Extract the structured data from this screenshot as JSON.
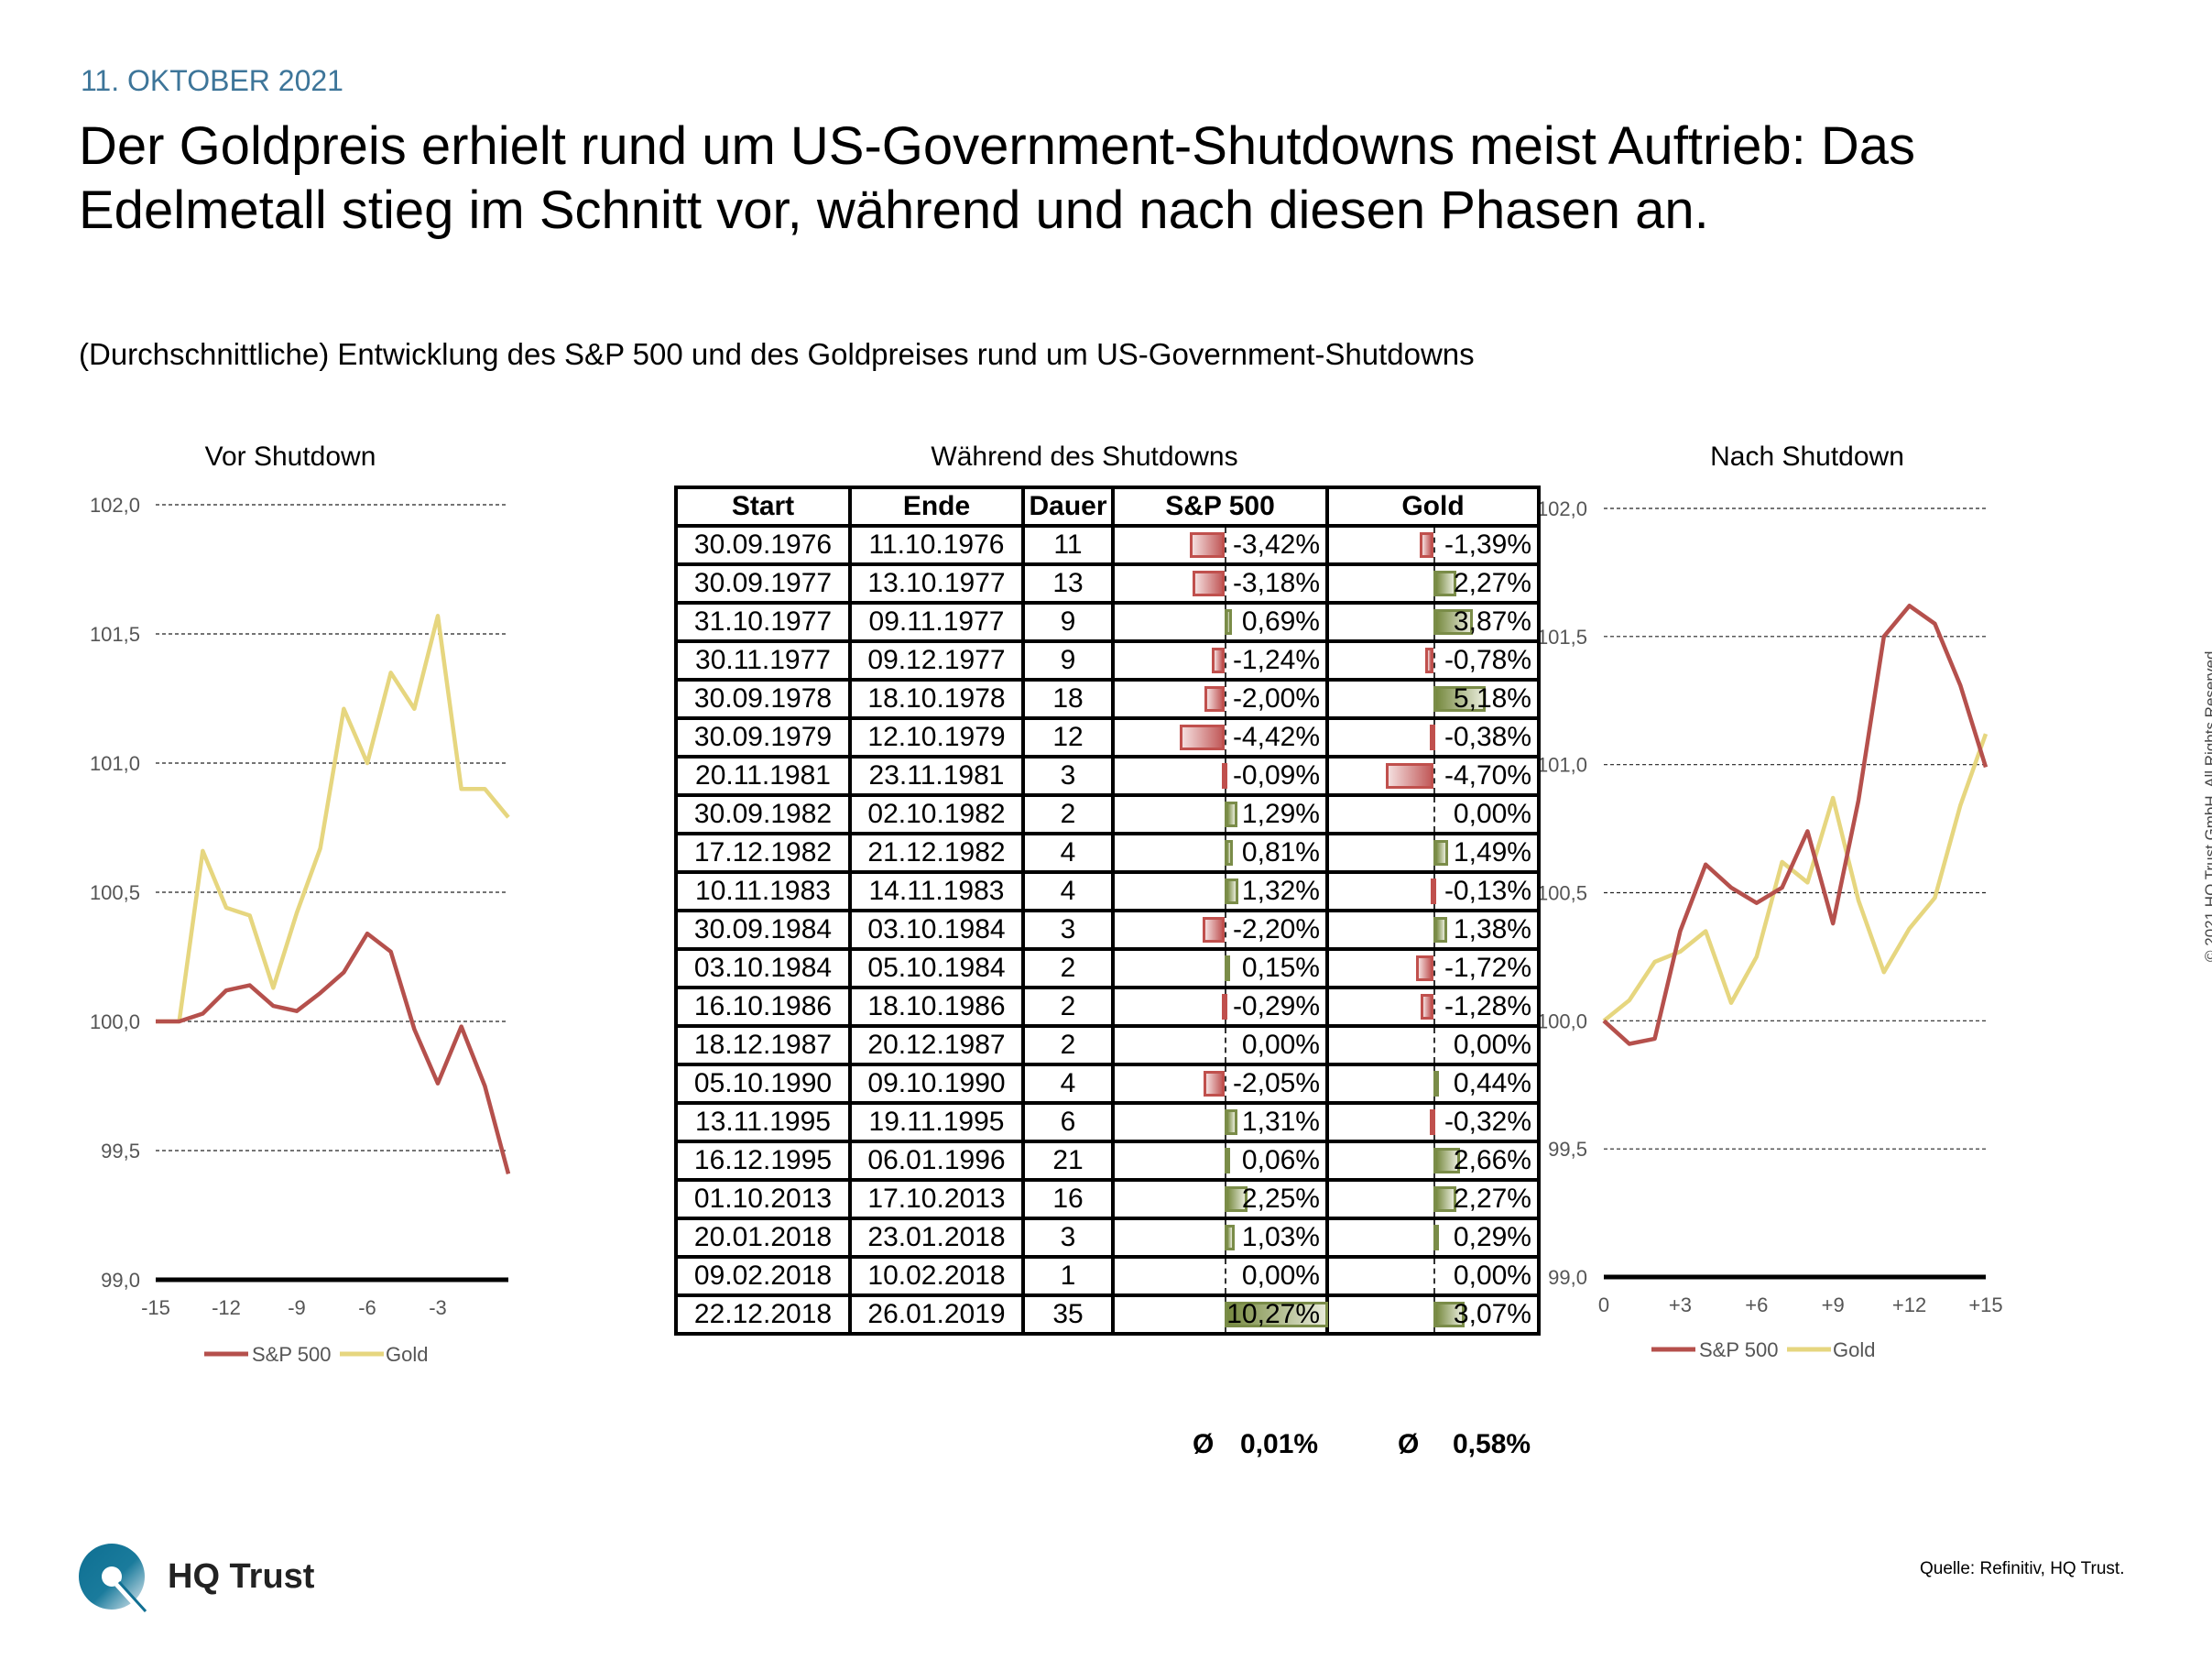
{
  "header": {
    "date": "11. OKTOBER 2021",
    "title_line1": "Der Goldpreis erhielt rund um US-Government-Shutdowns meist Auftrieb: Das",
    "title_line2": "Edelmetall stieg im Schnitt vor, während und nach diesen Phasen an.",
    "subtitle": "(Durchschnittliche) Entwicklung des S&P 500 und des Goldpreises rund um US-Government-Shutdowns"
  },
  "colors": {
    "date": "#3d7599",
    "sp500": "#b5504c",
    "gold": "#e6d67f",
    "bar_negative": "#c0504d",
    "bar_positive": "#7a8c48"
  },
  "panels": {
    "before_title": "Vor Shutdown",
    "during_title": "Während des Shutdowns",
    "after_title": "Nach Shutdown"
  },
  "chart_data": [
    {
      "type": "line",
      "title": "Vor Shutdown",
      "x": [
        -15,
        -14,
        -13,
        -12,
        -11,
        -10,
        -9,
        -8,
        -7,
        -6,
        -5,
        -4,
        -3,
        -2,
        -1,
        0
      ],
      "xticks": [
        -15,
        -12,
        -9,
        -6,
        -3
      ],
      "xtick_labels": [
        "-15",
        "-12",
        "-9",
        "-6",
        "-3"
      ],
      "ylim": [
        99.0,
        102.0
      ],
      "yticks": [
        99.0,
        99.5,
        100.0,
        100.5,
        101.0,
        101.5,
        102.0
      ],
      "ytick_labels": [
        "99,0",
        "99,5",
        "100,0",
        "100,5",
        "101,0",
        "101,5",
        "102,0"
      ],
      "grid": true,
      "legend": "bottom",
      "series": [
        {
          "name": "S&P 500",
          "values": [
            100.0,
            100.0,
            100.03,
            100.12,
            100.14,
            100.06,
            100.04,
            100.11,
            100.19,
            100.34,
            100.27,
            99.97,
            99.76,
            99.98,
            99.75,
            99.41
          ]
        },
        {
          "name": "Gold",
          "values": [
            100.0,
            100.0,
            100.66,
            100.44,
            100.41,
            100.13,
            100.42,
            100.67,
            101.21,
            101.0,
            101.35,
            101.21,
            101.57,
            100.9,
            100.9,
            100.79
          ]
        }
      ]
    },
    {
      "type": "table",
      "title": "Während des Shutdowns",
      "columns": [
        "Start",
        "Ende",
        "Dauer",
        "S&P 500",
        "Gold"
      ],
      "rows": [
        [
          "30.09.1976",
          "11.10.1976",
          "11",
          "-3,42%",
          "-1,39%"
        ],
        [
          "30.09.1977",
          "13.10.1977",
          "13",
          "-3,18%",
          "2,27%"
        ],
        [
          "31.10.1977",
          "09.11.1977",
          "9",
          "0,69%",
          "3,87%"
        ],
        [
          "30.11.1977",
          "09.12.1977",
          "9",
          "-1,24%",
          "-0,78%"
        ],
        [
          "30.09.1978",
          "18.10.1978",
          "18",
          "-2,00%",
          "5,18%"
        ],
        [
          "30.09.1979",
          "12.10.1979",
          "12",
          "-4,42%",
          "-0,38%"
        ],
        [
          "20.11.1981",
          "23.11.1981",
          "3",
          "-0,09%",
          "-4,70%"
        ],
        [
          "30.09.1982",
          "02.10.1982",
          "2",
          "1,29%",
          "0,00%"
        ],
        [
          "17.12.1982",
          "21.12.1982",
          "4",
          "0,81%",
          "1,49%"
        ],
        [
          "10.11.1983",
          "14.11.1983",
          "4",
          "1,32%",
          "-0,13%"
        ],
        [
          "30.09.1984",
          "03.10.1984",
          "3",
          "-2,20%",
          "1,38%"
        ],
        [
          "03.10.1984",
          "05.10.1984",
          "2",
          "0,15%",
          "-1,72%"
        ],
        [
          "16.10.1986",
          "18.10.1986",
          "2",
          "-0,29%",
          "-1,28%"
        ],
        [
          "18.12.1987",
          "20.12.1987",
          "2",
          "0,00%",
          "0,00%"
        ],
        [
          "05.10.1990",
          "09.10.1990",
          "4",
          "-2,05%",
          "0,44%"
        ],
        [
          "13.11.1995",
          "19.11.1995",
          "6",
          "1,31%",
          "-0,32%"
        ],
        [
          "16.12.1995",
          "06.01.1996",
          "21",
          "0,06%",
          "2,66%"
        ],
        [
          "01.10.2013",
          "17.10.2013",
          "16",
          "2,25%",
          "2,27%"
        ],
        [
          "20.01.2018",
          "23.01.2018",
          "3",
          "1,03%",
          "0,29%"
        ],
        [
          "09.02.2018",
          "10.02.2018",
          "1",
          "0,00%",
          "0,00%"
        ],
        [
          "22.12.2018",
          "26.01.2019",
          "35",
          "10,27%",
          "3,07%"
        ]
      ],
      "sp500_values": [
        -3.42,
        -3.18,
        0.69,
        -1.24,
        -2.0,
        -4.42,
        -0.09,
        1.29,
        0.81,
        1.32,
        -2.2,
        0.15,
        -0.29,
        0.0,
        -2.05,
        1.31,
        0.06,
        2.25,
        1.03,
        0.0,
        10.27
      ],
      "gold_values": [
        -1.39,
        2.27,
        3.87,
        -0.78,
        5.18,
        -0.38,
        -4.7,
        0.0,
        1.49,
        -0.13,
        1.38,
        -1.72,
        -1.28,
        0.0,
        0.44,
        -0.32,
        2.66,
        2.27,
        0.29,
        0.0,
        3.07
      ],
      "average_symbol": "Ø",
      "average_sp500": "0,01%",
      "average_gold": "0,58%"
    },
    {
      "type": "line",
      "title": "Nach Shutdown",
      "x": [
        0,
        1,
        2,
        3,
        4,
        5,
        6,
        7,
        8,
        9,
        10,
        11,
        12,
        13,
        14,
        15
      ],
      "xticks": [
        0,
        3,
        6,
        9,
        12,
        15
      ],
      "xtick_labels": [
        "0",
        "+3",
        "+6",
        "+9",
        "+12",
        "+15"
      ],
      "ylim": [
        99.0,
        102.0
      ],
      "yticks": [
        99.0,
        99.5,
        100.0,
        100.5,
        101.0,
        101.5,
        102.0
      ],
      "ytick_labels": [
        "99,0",
        "99,5",
        "100,0",
        "100,5",
        "101,0",
        "101,5",
        "102,0"
      ],
      "grid": true,
      "legend": "bottom",
      "series": [
        {
          "name": "S&P 500",
          "values": [
            100.0,
            99.91,
            99.93,
            100.35,
            100.61,
            100.52,
            100.46,
            100.52,
            100.74,
            100.38,
            100.86,
            101.5,
            101.62,
            101.55,
            101.31,
            100.99
          ]
        },
        {
          "name": "Gold",
          "values": [
            100.0,
            100.08,
            100.23,
            100.27,
            100.35,
            100.07,
            100.25,
            100.62,
            100.54,
            100.87,
            100.47,
            100.19,
            100.36,
            100.48,
            100.84,
            101.12
          ]
        }
      ]
    }
  ],
  "footer": {
    "logo_text": "HQ Trust",
    "source": "Quelle: Refinitiv, HQ Trust.",
    "copyright": "© 2021 HQ Trust GmbH. All Rights Reserved."
  }
}
